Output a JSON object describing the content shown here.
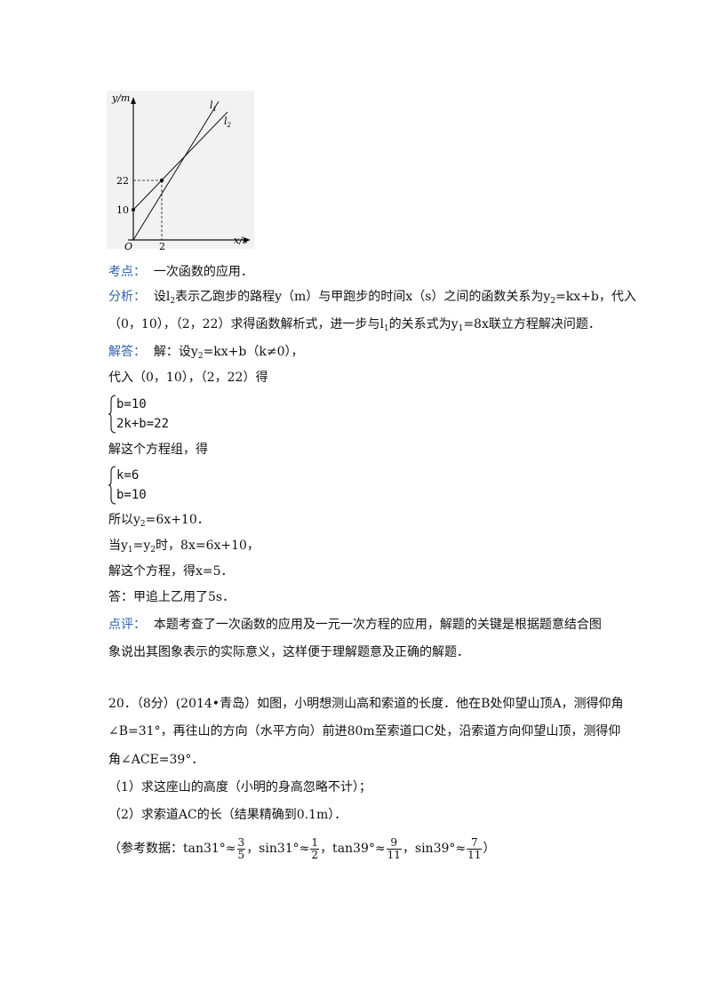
{
  "graph": {
    "y_axis_label": "y/m",
    "x_axis_label": "x/s",
    "origin_label": "O",
    "y_ticks": [
      "10",
      "22"
    ],
    "x_ticks": [
      "2"
    ],
    "line1_label": "l",
    "line1_sub": "1",
    "line2_label": "l",
    "line2_sub": "2"
  },
  "kaodian": {
    "label": "考点：",
    "text": "一次函数的应用．"
  },
  "fenxi": {
    "label": "分析：",
    "t1": "设l",
    "t1s": "2",
    "t2": "表示乙跑步的路程y（m）与甲跑步的时间x（s）之间的函数关系为y",
    "t2s": "2",
    "t3": "=kx+b，代入",
    "line2a": "（0，10），（2，22）求得函数解析式，进一步与l",
    "line2s": "1",
    "line2b": "的关系式为y",
    "line2s2": "1",
    "line2c": "=8x联立方程解决问题．"
  },
  "jieda": {
    "label": "解答：",
    "t1": "解：设y",
    "t1s": "2",
    "t2": "=kx+b（k≠0），",
    "sub_in": "代入（0，10），（2，22）得",
    "sys1_eq1": "b=10",
    "sys1_eq2": "2k+b=22",
    "solve_text": "解这个方程组，得",
    "sys2_eq1": "k=6",
    "sys2_eq2": "b=10",
    "so_a": "所以y",
    "so_s": "2",
    "so_b": "=6x+10．",
    "when_a": "当y",
    "when_s1": "1",
    "when_b": "=y",
    "when_s2": "2",
    "when_c": "时，8x=6x+10，",
    "solve2": "解这个方程，得x=5．",
    "answer": "答：甲追上乙用了5s．"
  },
  "dianping": {
    "label": "点评：",
    "line1": "本题考查了一次函数的应用及一元一次方程的应用，解题的关键是根据题意结合图",
    "line2": "象说出其图象表示的实际意义，这样便于理解题意及正确的解题．"
  },
  "q20": {
    "line1": "20．（8分）(2014•青岛）如图，小明想测山高和索道的长度．他在B处仰望山顶A，测得仰角",
    "line2": "∠B=31°，再往山的方向（水平方向）前进80m至索道口C处，沿索道方向仰望山顶，测得仰",
    "line3": "角∠ACE=39°．",
    "part1": "（1）求这座山的高度（小明的身高忽略不计）；",
    "part2": "（2）求索道AC的长（结果精确到0.1m）．",
    "ref_prefix": "（参考数据：tan31°≈",
    "f1n": "3",
    "f1d": "5",
    "ref_a": "，sin31°≈",
    "f2n": "1",
    "f2d": "2",
    "ref_b": "，tan39°≈",
    "f3n": "9",
    "f3d": "11",
    "ref_c": "，sin39°≈",
    "f4n": "7",
    "f4d": "11",
    "ref_suffix": "）"
  }
}
